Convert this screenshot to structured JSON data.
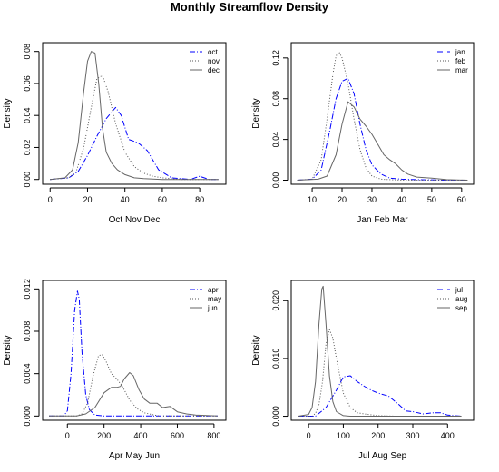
{
  "figure": {
    "title": "Monthly Streamflow Density"
  },
  "chart_data": [
    {
      "type": "line",
      "xlabel": "Oct Nov Dec",
      "ylabel": "Density",
      "xlim": [
        -4,
        94
      ],
      "ylim": [
        -0.003,
        0.0855
      ],
      "xticks": [
        0,
        20,
        40,
        60,
        80
      ],
      "yticks": [
        0.0,
        0.02,
        0.04,
        0.06,
        0.08
      ],
      "ytick_labels": [
        "0.00",
        "0.02",
        "0.04",
        "0.06",
        "0.08"
      ],
      "legend": "top-right",
      "series": [
        {
          "name": "oct",
          "color": "#0000ff",
          "dash": "6,2,1,2",
          "x": [
            0,
            10,
            15,
            20,
            25,
            30,
            35,
            38,
            42,
            47,
            52,
            58,
            65,
            75,
            80,
            85,
            90
          ],
          "y": [
            0,
            0.001,
            0.005,
            0.015,
            0.027,
            0.038,
            0.045,
            0.04,
            0.025,
            0.023,
            0.018,
            0.006,
            0.001,
            0,
            0.002,
            0,
            0
          ]
        },
        {
          "name": "nov",
          "color": "#555555",
          "dash": "1,2",
          "x": [
            0,
            10,
            14,
            18,
            22,
            25,
            28,
            31,
            35,
            40,
            45,
            50,
            55,
            60,
            70,
            90
          ],
          "y": [
            0,
            0.001,
            0.005,
            0.02,
            0.045,
            0.063,
            0.065,
            0.055,
            0.035,
            0.017,
            0.008,
            0.004,
            0.002,
            0.001,
            0,
            0
          ]
        },
        {
          "name": "dec",
          "color": "#666666",
          "dash": "",
          "x": [
            0,
            8,
            12,
            15,
            18,
            20,
            22,
            24,
            26,
            28,
            30,
            33,
            36,
            40,
            45,
            50,
            60,
            90
          ],
          "y": [
            0,
            0.001,
            0.006,
            0.023,
            0.055,
            0.074,
            0.08,
            0.079,
            0.06,
            0.032,
            0.017,
            0.01,
            0.006,
            0.003,
            0.001,
            0.0005,
            0,
            0
          ]
        }
      ]
    },
    {
      "type": "line",
      "xlabel": "Jan Feb Mar",
      "ylabel": "Density",
      "xlim": [
        3,
        64
      ],
      "ylim": [
        -0.004,
        0.135
      ],
      "xticks": [
        10,
        20,
        30,
        40,
        50,
        60
      ],
      "yticks": [
        0.0,
        0.04,
        0.08,
        0.12
      ],
      "ytick_labels": [
        "0.00",
        "0.04",
        "0.08",
        "0.12"
      ],
      "legend": "top-right",
      "series": [
        {
          "name": "jan",
          "color": "#0000ff",
          "dash": "6,2,1,2",
          "x": [
            5,
            10,
            13,
            16,
            18,
            20,
            22,
            24,
            26,
            28,
            30,
            33,
            36,
            40,
            45,
            55,
            62
          ],
          "y": [
            0,
            0.001,
            0.01,
            0.05,
            0.08,
            0.097,
            0.1,
            0.085,
            0.055,
            0.03,
            0.015,
            0.006,
            0.002,
            0.001,
            0.0005,
            0,
            0
          ]
        },
        {
          "name": "feb",
          "color": "#555555",
          "dash": "1,2",
          "x": [
            5,
            10,
            13,
            15,
            17,
            18,
            19,
            20,
            22,
            24,
            26,
            28,
            30,
            33,
            36,
            40,
            62
          ],
          "y": [
            0,
            0.001,
            0.02,
            0.06,
            0.105,
            0.122,
            0.126,
            0.12,
            0.095,
            0.06,
            0.03,
            0.012,
            0.004,
            0.001,
            0.0005,
            0,
            0
          ]
        },
        {
          "name": "mar",
          "color": "#666666",
          "dash": "",
          "x": [
            5,
            12,
            15,
            18,
            20,
            22,
            24,
            26,
            28,
            30,
            32,
            34,
            36,
            38,
            40,
            42,
            45,
            50,
            55,
            62
          ],
          "y": [
            0,
            0.001,
            0.004,
            0.025,
            0.055,
            0.077,
            0.072,
            0.06,
            0.053,
            0.045,
            0.035,
            0.025,
            0.02,
            0.016,
            0.01,
            0.006,
            0.003,
            0.002,
            0.0005,
            0
          ]
        }
      ]
    },
    {
      "type": "line",
      "xlabel": "Apr May Jun",
      "ylabel": "Density",
      "xlim": [
        -135,
        865
      ],
      "ylim": [
        -0.0004,
        0.0128
      ],
      "xticks": [
        0,
        200,
        400,
        600,
        800
      ],
      "yticks": [
        0.0,
        0.004,
        0.008,
        0.012
      ],
      "ytick_labels": [
        "0.000",
        "0.004",
        "0.008",
        "0.012"
      ],
      "legend": "top-right",
      "series": [
        {
          "name": "apr",
          "color": "#0000ff",
          "dash": "6,2,1,2",
          "x": [
            -100,
            -20,
            0,
            20,
            40,
            55,
            65,
            80,
            100,
            120,
            150,
            200,
            300,
            820
          ],
          "y": [
            0,
            0,
            0.0005,
            0.004,
            0.01,
            0.0118,
            0.011,
            0.006,
            0.002,
            0.0006,
            0.0001,
            0,
            0,
            0
          ]
        },
        {
          "name": "may",
          "color": "#555555",
          "dash": "1,2",
          "x": [
            -100,
            50,
            80,
            110,
            140,
            170,
            190,
            210,
            240,
            270,
            300,
            340,
            380,
            420,
            500,
            820
          ],
          "y": [
            0,
            0,
            0.0002,
            0.0012,
            0.0038,
            0.0057,
            0.0058,
            0.0052,
            0.004,
            0.0035,
            0.0028,
            0.0015,
            0.0007,
            0.0003,
            0,
            0
          ]
        },
        {
          "name": "jun",
          "color": "#666666",
          "dash": "",
          "x": [
            -100,
            50,
            100,
            150,
            200,
            240,
            270,
            290,
            310,
            340,
            360,
            390,
            420,
            450,
            490,
            520,
            560,
            600,
            650,
            700,
            820
          ],
          "y": [
            0,
            0,
            0.0002,
            0.0008,
            0.0022,
            0.0027,
            0.0027,
            0.0028,
            0.0035,
            0.0041,
            0.0038,
            0.0025,
            0.0016,
            0.0012,
            0.0012,
            0.0008,
            0.0009,
            0.0004,
            0.0002,
            0.0001,
            0
          ]
        }
      ]
    },
    {
      "type": "line",
      "xlabel": "Jul Aug Sep",
      "ylabel": "Density",
      "xlim": [
        -50,
        475
      ],
      "ylim": [
        -0.0007,
        0.0235
      ],
      "xticks": [
        0,
        100,
        200,
        300,
        400
      ],
      "yticks": [
        0.0,
        0.01,
        0.02
      ],
      "ytick_labels": [
        "0.000",
        "0.010",
        "0.020"
      ],
      "legend": "top-right",
      "series": [
        {
          "name": "jul",
          "color": "#0000ff",
          "dash": "6,2,1,2",
          "x": [
            -30,
            20,
            50,
            80,
            100,
            120,
            140,
            160,
            180,
            200,
            230,
            260,
            280,
            300,
            330,
            360,
            380,
            400,
            440
          ],
          "y": [
            0,
            0,
            0.0015,
            0.0045,
            0.0068,
            0.007,
            0.006,
            0.0052,
            0.0045,
            0.004,
            0.0035,
            0.002,
            0.0009,
            0.0008,
            0.0004,
            0.0006,
            0.0006,
            0.0002,
            0
          ]
        },
        {
          "name": "aug",
          "color": "#555555",
          "dash": "1,2",
          "x": [
            -30,
            10,
            20,
            30,
            40,
            50,
            60,
            70,
            80,
            90,
            100,
            120,
            140,
            160,
            200,
            250,
            440
          ],
          "y": [
            0,
            0,
            0.0005,
            0.002,
            0.006,
            0.0125,
            0.015,
            0.0135,
            0.01,
            0.007,
            0.004,
            0.0015,
            0.0006,
            0.0004,
            0.0001,
            0,
            0
          ]
        },
        {
          "name": "sep",
          "color": "#666666",
          "dash": "",
          "x": [
            -30,
            0,
            10,
            20,
            30,
            38,
            42,
            50,
            60,
            70,
            80,
            100,
            120,
            140,
            440
          ],
          "y": [
            0,
            0.0003,
            0.0015,
            0.006,
            0.016,
            0.022,
            0.0225,
            0.016,
            0.007,
            0.0025,
            0.0008,
            0.0001,
            0,
            0,
            0
          ]
        }
      ]
    }
  ]
}
